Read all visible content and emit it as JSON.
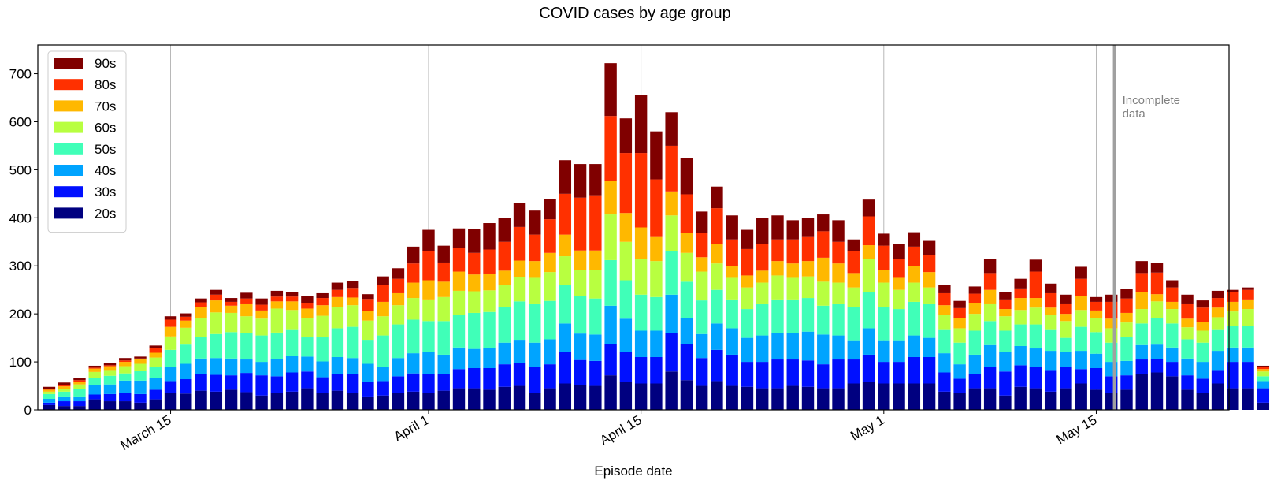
{
  "chart_data": {
    "type": "bar",
    "stacked": true,
    "title": "COVID cases by age group",
    "xlabel": "Episode date",
    "ylabel": "",
    "ylim": [
      0,
      760
    ],
    "yticks": [
      0,
      100,
      200,
      300,
      400,
      500,
      600,
      700
    ],
    "xticks": [
      {
        "label": "March 15",
        "date": "2020-03-15"
      },
      {
        "label": "April 1",
        "date": "2020-04-01"
      },
      {
        "label": "April 15",
        "date": "2020-04-15"
      },
      {
        "label": "May 1",
        "date": "2020-05-01"
      },
      {
        "label": "May 15",
        "date": "2020-05-15"
      }
    ],
    "date_range": [
      "2020-03-07",
      "2020-05-23"
    ],
    "grid": "vertical at x-ticks",
    "legend_position": "top-left",
    "annotation": {
      "text_lines": [
        "Incomplete",
        "data"
      ],
      "date": "2020-05-16"
    },
    "series": [
      {
        "name": "20s",
        "color": "#000080",
        "values": [
          10,
          8,
          8,
          22,
          18,
          18,
          15,
          22,
          35,
          34,
          40,
          38,
          42,
          37,
          30,
          35,
          38,
          45,
          35,
          40,
          35,
          28,
          30,
          35,
          38,
          35,
          40,
          45,
          45,
          42,
          48,
          50,
          36,
          45,
          55,
          52,
          50,
          72,
          58,
          55,
          55,
          80,
          62,
          50,
          60,
          50,
          48,
          45,
          45,
          50,
          48,
          45,
          45,
          55,
          58,
          55,
          55,
          55,
          55,
          38,
          35,
          45,
          45,
          30,
          48,
          45,
          38,
          45,
          55,
          42,
          35,
          42,
          75,
          78,
          70,
          42,
          35,
          55,
          45,
          45,
          15,
          5
        ]
      },
      {
        "name": "30s",
        "color": "#0010ff",
        "values": [
          5,
          10,
          10,
          10,
          15,
          18,
          18,
          20,
          25,
          30,
          35,
          35,
          30,
          40,
          42,
          35,
          40,
          35,
          33,
          35,
          40,
          30,
          30,
          35,
          38,
          40,
          35,
          40,
          42,
          45,
          47,
          48,
          54,
          50,
          65,
          52,
          52,
          65,
          62,
          55,
          55,
          80,
          75,
          58,
          65,
          65,
          52,
          55,
          60,
          55,
          55,
          50,
          60,
          50,
          57,
          45,
          45,
          55,
          55,
          40,
          30,
          30,
          45,
          50,
          45,
          45,
          45,
          45,
          30,
          45,
          35,
          30,
          30,
          28,
          30,
          30,
          30,
          28,
          55,
          55,
          30,
          5
        ]
      },
      {
        "name": "40s",
        "color": "#00a4ff",
        "values": [
          8,
          10,
          10,
          20,
          20,
          25,
          28,
          25,
          30,
          32,
          32,
          35,
          35,
          28,
          28,
          36,
          35,
          31,
          33,
          35,
          33,
          38,
          30,
          38,
          42,
          45,
          40,
          45,
          40,
          42,
          45,
          48,
          50,
          52,
          60,
          55,
          55,
          80,
          70,
          55,
          55,
          80,
          55,
          50,
          55,
          55,
          50,
          55,
          55,
          55,
          60,
          62,
          50,
          40,
          55,
          45,
          45,
          45,
          40,
          40,
          30,
          40,
          45,
          40,
          40,
          38,
          40,
          30,
          38,
          30,
          30,
          30,
          30,
          30,
          30,
          35,
          35,
          40,
          30,
          30,
          15,
          3
        ]
      },
      {
        "name": "50s",
        "color": "#40ffb8",
        "values": [
          10,
          10,
          15,
          15,
          18,
          15,
          20,
          22,
          35,
          40,
          45,
          50,
          55,
          55,
          55,
          55,
          55,
          40,
          50,
          60,
          65,
          50,
          65,
          70,
          70,
          65,
          70,
          68,
          75,
          75,
          75,
          80,
          80,
          80,
          80,
          78,
          75,
          95,
          80,
          75,
          70,
          90,
          75,
          70,
          70,
          60,
          60,
          65,
          70,
          70,
          70,
          60,
          65,
          70,
          75,
          70,
          65,
          70,
          70,
          50,
          45,
          50,
          50,
          45,
          45,
          50,
          45,
          30,
          50,
          45,
          40,
          50,
          45,
          55,
          50,
          40,
          40,
          45,
          45,
          45,
          10,
          2
        ]
      },
      {
        "name": "60s",
        "color": "#b8ff40",
        "values": [
          5,
          5,
          10,
          12,
          12,
          15,
          15,
          20,
          28,
          35,
          40,
          45,
          40,
          35,
          35,
          50,
          40,
          40,
          45,
          45,
          45,
          40,
          40,
          40,
          45,
          45,
          50,
          50,
          45,
          45,
          45,
          50,
          55,
          60,
          60,
          55,
          60,
          95,
          80,
          75,
          75,
          75,
          60,
          60,
          55,
          45,
          45,
          45,
          50,
          45,
          45,
          50,
          45,
          40,
          70,
          50,
          40,
          40,
          35,
          30,
          30,
          35,
          35,
          30,
          30,
          35,
          30,
          35,
          35,
          30,
          30,
          30,
          30,
          35,
          30,
          25,
          25,
          25,
          30,
          35,
          10,
          3
        ]
      },
      {
        "name": "70s",
        "color": "#ffb800",
        "values": [
          4,
          6,
          6,
          7,
          8,
          9,
          9,
          10,
          20,
          15,
          22,
          25,
          15,
          25,
          17,
          15,
          18,
          20,
          22,
          20,
          16,
          20,
          30,
          25,
          32,
          40,
          32,
          40,
          35,
          35,
          30,
          35,
          35,
          40,
          45,
          40,
          40,
          70,
          60,
          65,
          50,
          50,
          42,
          30,
          40,
          25,
          25,
          25,
          30,
          30,
          32,
          50,
          40,
          30,
          28,
          27,
          25,
          35,
          32,
          20,
          22,
          22,
          30,
          15,
          25,
          20,
          15,
          15,
          30,
          15,
          20,
          20,
          35,
          15,
          15,
          18,
          18,
          20,
          20,
          20,
          5,
          2
        ]
      },
      {
        "name": "80s",
        "color": "#ff3000",
        "values": [
          2,
          3,
          3,
          2,
          2,
          3,
          2,
          10,
          15,
          8,
          10,
          12,
          8,
          12,
          12,
          10,
          10,
          12,
          15,
          15,
          20,
          25,
          35,
          30,
          40,
          60,
          40,
          50,
          45,
          50,
          60,
          70,
          55,
          70,
          85,
          110,
          115,
          135,
          125,
          155,
          120,
          95,
          80,
          50,
          75,
          55,
          55,
          55,
          45,
          50,
          50,
          55,
          45,
          45,
          60,
          50,
          40,
          40,
          35,
          25,
          20,
          20,
          35,
          20,
          20,
          55,
          30,
          20,
          35,
          18,
          35,
          30,
          40,
          45,
          30,
          30,
          30,
          20,
          20,
          20,
          5,
          1
        ]
      },
      {
        "name": "90s",
        "color": "#800000",
        "values": [
          4,
          5,
          5,
          4,
          5,
          5,
          4,
          5,
          7,
          7,
          8,
          10,
          8,
          12,
          13,
          12,
          10,
          15,
          10,
          15,
          15,
          10,
          18,
          22,
          35,
          45,
          35,
          40,
          50,
          55,
          50,
          50,
          50,
          42,
          70,
          70,
          65,
          110,
          72,
          120,
          100,
          70,
          75,
          45,
          45,
          50,
          40,
          55,
          50,
          40,
          40,
          35,
          45,
          25,
          35,
          25,
          30,
          30,
          30,
          18,
          15,
          15,
          30,
          15,
          20,
          25,
          20,
          20,
          25,
          10,
          15,
          20,
          25,
          20,
          15,
          20,
          15,
          15,
          5,
          5,
          2,
          1
        ]
      }
    ]
  }
}
